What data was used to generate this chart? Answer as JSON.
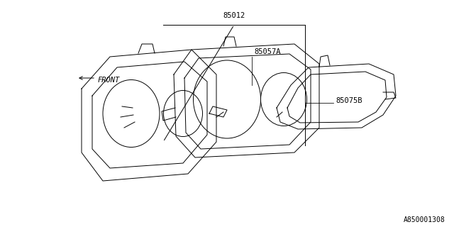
{
  "title": "",
  "bg_color": "#ffffff",
  "line_color": "#000000",
  "text_color": "#000000",
  "label_85012": "85012",
  "label_85057A": "85057A",
  "label_85075B": "85075B",
  "label_front": "←FRONT",
  "label_part_num": "A850001308",
  "font_size_labels": 7.5,
  "font_size_part": 7.0
}
